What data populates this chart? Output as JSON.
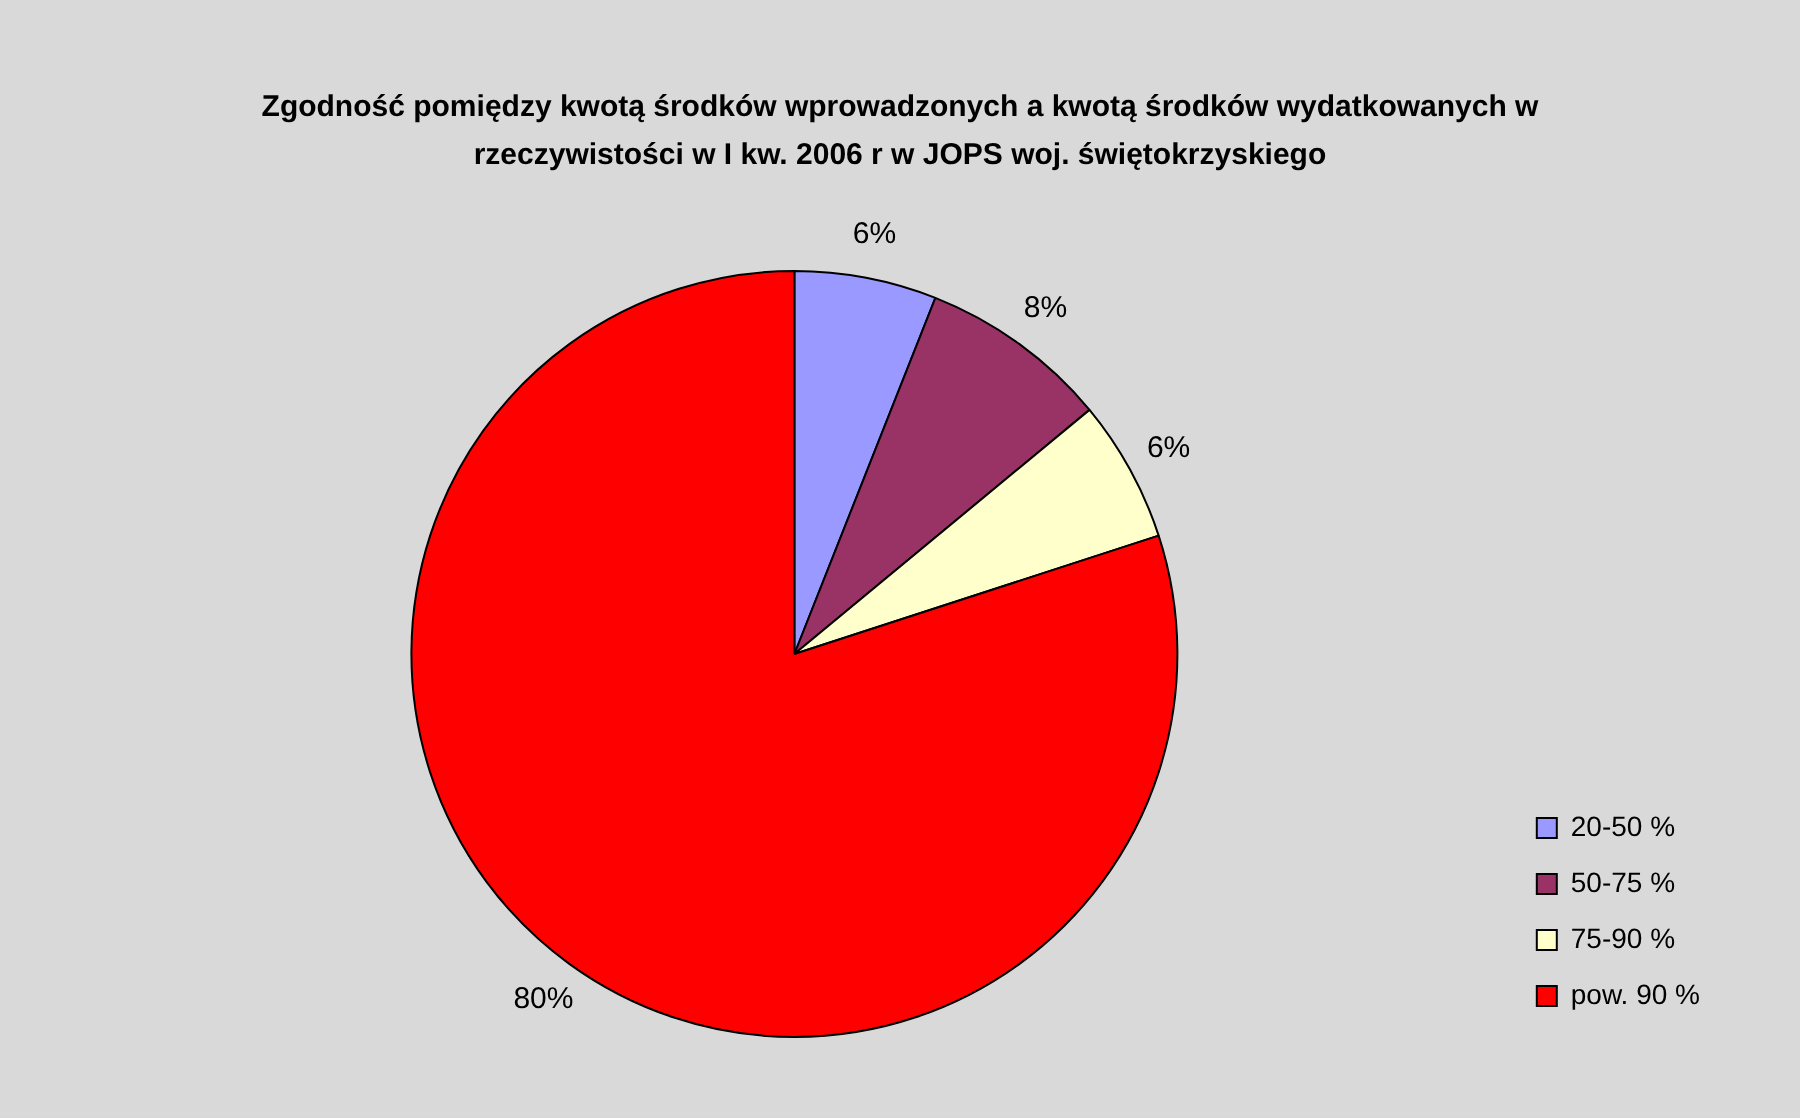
{
  "chart_data": {
    "type": "pie",
    "title": "Zgodność pomiędzy kwotą środków wprowadzonych a kwotą środków wydatkowanych w rzeczywistości w I kw. 2006 r w JOPS woj. świętokrzyskiego",
    "categories": [
      "20-50 %",
      "50-75 %",
      "75-90 %",
      "pow. 90 %"
    ],
    "values": [
      6,
      8,
      6,
      80
    ],
    "colors": [
      "#9999ff",
      "#993366",
      "#ffffcc",
      "#ff0000"
    ],
    "value_labels": [
      "6%",
      "8%",
      "6%",
      "80%"
    ],
    "legend": "bottom right"
  }
}
